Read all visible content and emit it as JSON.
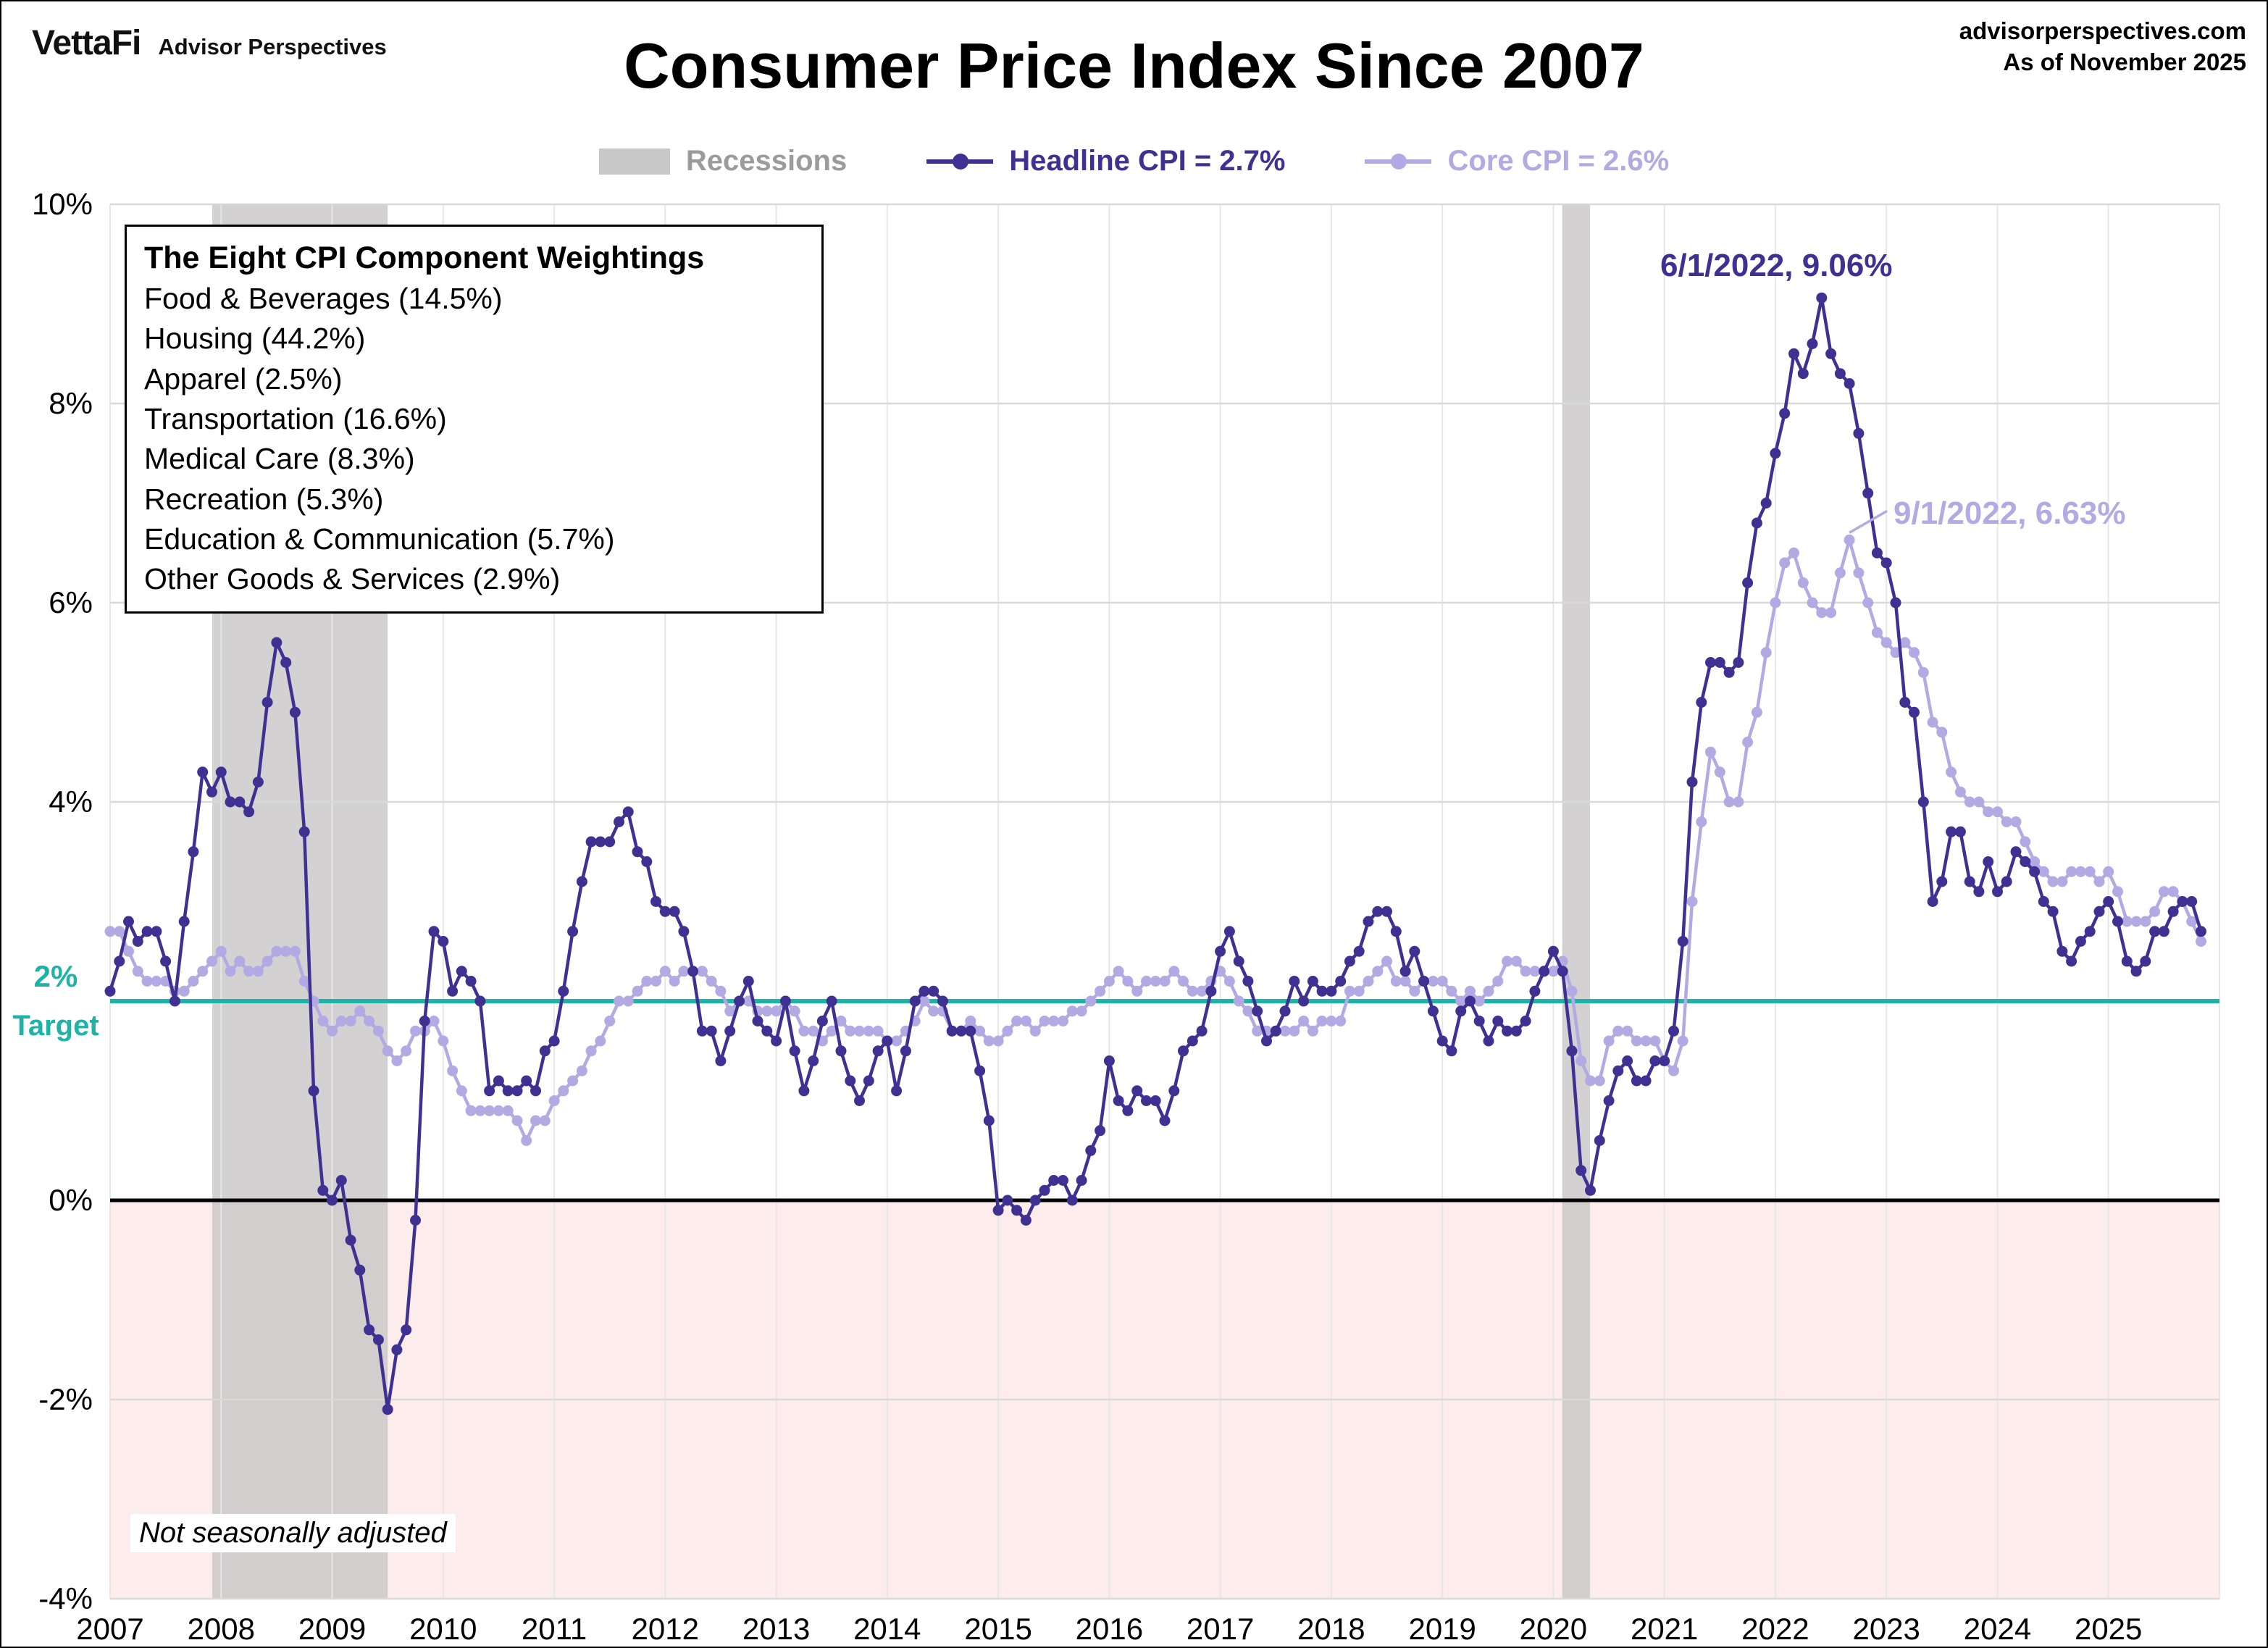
{
  "header": {
    "logo": "VettaFi",
    "logo_sub": "Advisor Perspectives",
    "title": "Consumer Price Index Since 2007",
    "site": "advisorperspectives.com",
    "as_of": "As of November 2025"
  },
  "legend": {
    "recessions": "Recessions",
    "headline": "Headline CPI = 2.7%",
    "core": "Core CPI = 2.6%"
  },
  "weightings": {
    "title": "The Eight CPI Component Weightings",
    "items": [
      "Food & Beverages (14.5%)",
      "Housing (44.2%)",
      "Apparel (2.5%)",
      "Transportation (16.6%)",
      "Medical Care (8.3%)",
      "Recreation (5.3%)",
      "Education & Communication (5.7%)",
      "Other Goods & Services (2.9%)"
    ]
  },
  "annotations": {
    "headline_peak": "6/1/2022, 9.06%",
    "core_peak": "9/1/2022, 6.63%"
  },
  "target": {
    "line1": "2%",
    "line2": "Target"
  },
  "footnote": "Not seasonally adjusted",
  "colors": {
    "headline": "#3e3192",
    "core": "#b3a9e3",
    "target_line": "#1fb3a7",
    "recession_band": "#c9c7c7",
    "below_zero_fill": "#fdecec",
    "gridline": "#d9d9d9",
    "year_gridline": "#e7e7e7"
  },
  "chart_data": {
    "type": "line",
    "title": "Consumer Price Index Since 2007",
    "frequency": "monthly",
    "x_start": "2007-01",
    "x_end": "2025-11",
    "xlim": [
      2007,
      2026
    ],
    "ylim": [
      -4,
      10
    ],
    "grid": true,
    "target_value": 2,
    "y_tick_values": [
      10,
      8,
      6,
      4,
      2,
      0,
      -2,
      -4
    ],
    "y_tick_labels": [
      "10%",
      "8%",
      "6%",
      "4%",
      "",
      "0%",
      "-2%",
      "-4%"
    ],
    "x_tick_labels": [
      "2007",
      "2008",
      "2009",
      "2010",
      "2011",
      "2012",
      "2013",
      "2014",
      "2015",
      "2016",
      "2017",
      "2018",
      "2019",
      "2020",
      "2021",
      "2022",
      "2023",
      "2024",
      "2025"
    ],
    "recessions": [
      [
        2007.92,
        2009.5
      ],
      [
        2020.08,
        2020.33
      ]
    ],
    "start_year": 2007,
    "series": [
      {
        "name": "Headline CPI",
        "latest": 2.7,
        "peak": {
          "date": "6/1/2022",
          "value": 9.06
        },
        "color": "#3e3192",
        "values": [
          2.1,
          2.4,
          2.8,
          2.6,
          2.7,
          2.7,
          2.4,
          2.0,
          2.8,
          3.5,
          4.3,
          4.1,
          4.3,
          4.0,
          4.0,
          3.9,
          4.2,
          5.0,
          5.6,
          5.4,
          4.9,
          3.7,
          1.1,
          0.1,
          0.0,
          0.2,
          -0.4,
          -0.7,
          -1.3,
          -1.4,
          -2.1,
          -1.5,
          -1.3,
          -0.2,
          1.8,
          2.7,
          2.6,
          2.1,
          2.3,
          2.2,
          2.0,
          1.1,
          1.2,
          1.1,
          1.1,
          1.2,
          1.1,
          1.5,
          1.6,
          2.1,
          2.7,
          3.2,
          3.6,
          3.6,
          3.6,
          3.8,
          3.9,
          3.5,
          3.4,
          3.0,
          2.9,
          2.9,
          2.7,
          2.3,
          1.7,
          1.7,
          1.4,
          1.7,
          2.0,
          2.2,
          1.8,
          1.7,
          1.6,
          2.0,
          1.5,
          1.1,
          1.4,
          1.8,
          2.0,
          1.5,
          1.2,
          1.0,
          1.2,
          1.5,
          1.6,
          1.1,
          1.5,
          2.0,
          2.1,
          2.1,
          2.0,
          1.7,
          1.7,
          1.7,
          1.3,
          0.8,
          -0.1,
          0.0,
          -0.1,
          -0.2,
          0.0,
          0.1,
          0.2,
          0.2,
          0.0,
          0.2,
          0.5,
          0.7,
          1.4,
          1.0,
          0.9,
          1.1,
          1.0,
          1.0,
          0.8,
          1.1,
          1.5,
          1.6,
          1.7,
          2.1,
          2.5,
          2.7,
          2.4,
          2.2,
          1.9,
          1.6,
          1.7,
          1.9,
          2.2,
          2.0,
          2.2,
          2.1,
          2.1,
          2.2,
          2.4,
          2.5,
          2.8,
          2.9,
          2.9,
          2.7,
          2.3,
          2.5,
          2.2,
          1.9,
          1.6,
          1.5,
          1.9,
          2.0,
          1.8,
          1.6,
          1.8,
          1.7,
          1.7,
          1.8,
          2.1,
          2.3,
          2.5,
          2.3,
          1.5,
          0.3,
          0.1,
          0.6,
          1.0,
          1.3,
          1.4,
          1.2,
          1.2,
          1.4,
          1.4,
          1.7,
          2.6,
          4.2,
          5.0,
          5.4,
          5.4,
          5.3,
          5.4,
          6.2,
          6.8,
          7.0,
          7.5,
          7.9,
          8.5,
          8.3,
          8.6,
          9.06,
          8.5,
          8.3,
          8.2,
          7.7,
          7.1,
          6.5,
          6.4,
          6.0,
          5.0,
          4.9,
          4.0,
          3.0,
          3.2,
          3.7,
          3.7,
          3.2,
          3.1,
          3.4,
          3.1,
          3.2,
          3.5,
          3.4,
          3.3,
          3.0,
          2.9,
          2.5,
          2.4,
          2.6,
          2.7,
          2.9,
          3.0,
          2.8,
          2.4,
          2.3,
          2.4,
          2.7,
          2.7,
          2.9,
          3.0,
          3.0,
          2.7
        ]
      },
      {
        "name": "Core CPI",
        "latest": 2.6,
        "peak": {
          "date": "9/1/2022",
          "value": 6.63
        },
        "color": "#b3a9e3",
        "values": [
          2.7,
          2.7,
          2.5,
          2.3,
          2.2,
          2.2,
          2.2,
          2.1,
          2.1,
          2.2,
          2.3,
          2.4,
          2.5,
          2.3,
          2.4,
          2.3,
          2.3,
          2.4,
          2.5,
          2.5,
          2.5,
          2.2,
          2.0,
          1.8,
          1.7,
          1.8,
          1.8,
          1.9,
          1.8,
          1.7,
          1.5,
          1.4,
          1.5,
          1.7,
          1.7,
          1.8,
          1.6,
          1.3,
          1.1,
          0.9,
          0.9,
          0.9,
          0.9,
          0.9,
          0.8,
          0.6,
          0.8,
          0.8,
          1.0,
          1.1,
          1.2,
          1.3,
          1.5,
          1.6,
          1.8,
          2.0,
          2.0,
          2.1,
          2.2,
          2.2,
          2.3,
          2.2,
          2.3,
          2.3,
          2.3,
          2.2,
          2.1,
          1.9,
          2.0,
          2.0,
          1.9,
          1.9,
          1.9,
          2.0,
          1.9,
          1.7,
          1.7,
          1.6,
          1.7,
          1.8,
          1.7,
          1.7,
          1.7,
          1.7,
          1.6,
          1.6,
          1.7,
          1.8,
          2.0,
          1.9,
          1.9,
          1.7,
          1.7,
          1.8,
          1.7,
          1.6,
          1.6,
          1.7,
          1.8,
          1.8,
          1.7,
          1.8,
          1.8,
          1.8,
          1.9,
          1.9,
          2.0,
          2.1,
          2.2,
          2.3,
          2.2,
          2.1,
          2.2,
          2.2,
          2.2,
          2.3,
          2.2,
          2.1,
          2.1,
          2.2,
          2.3,
          2.2,
          2.0,
          1.9,
          1.7,
          1.7,
          1.7,
          1.7,
          1.7,
          1.8,
          1.7,
          1.8,
          1.8,
          1.8,
          2.1,
          2.1,
          2.2,
          2.3,
          2.4,
          2.2,
          2.2,
          2.1,
          2.2,
          2.2,
          2.2,
          2.1,
          2.0,
          2.1,
          2.0,
          2.1,
          2.2,
          2.4,
          2.4,
          2.3,
          2.3,
          2.3,
          2.3,
          2.4,
          2.1,
          1.4,
          1.2,
          1.2,
          1.6,
          1.7,
          1.7,
          1.6,
          1.6,
          1.6,
          1.4,
          1.3,
          1.6,
          3.0,
          3.8,
          4.5,
          4.3,
          4.0,
          4.0,
          4.6,
          4.9,
          5.5,
          6.0,
          6.4,
          6.5,
          6.2,
          6.0,
          5.9,
          5.9,
          6.3,
          6.63,
          6.3,
          6.0,
          5.7,
          5.6,
          5.5,
          5.6,
          5.5,
          5.3,
          4.8,
          4.7,
          4.3,
          4.1,
          4.0,
          4.0,
          3.9,
          3.9,
          3.8,
          3.8,
          3.6,
          3.4,
          3.3,
          3.2,
          3.2,
          3.3,
          3.3,
          3.3,
          3.2,
          3.3,
          3.1,
          2.8,
          2.8,
          2.8,
          2.9,
          3.1,
          3.1,
          3.0,
          2.8,
          2.6
        ]
      }
    ]
  }
}
